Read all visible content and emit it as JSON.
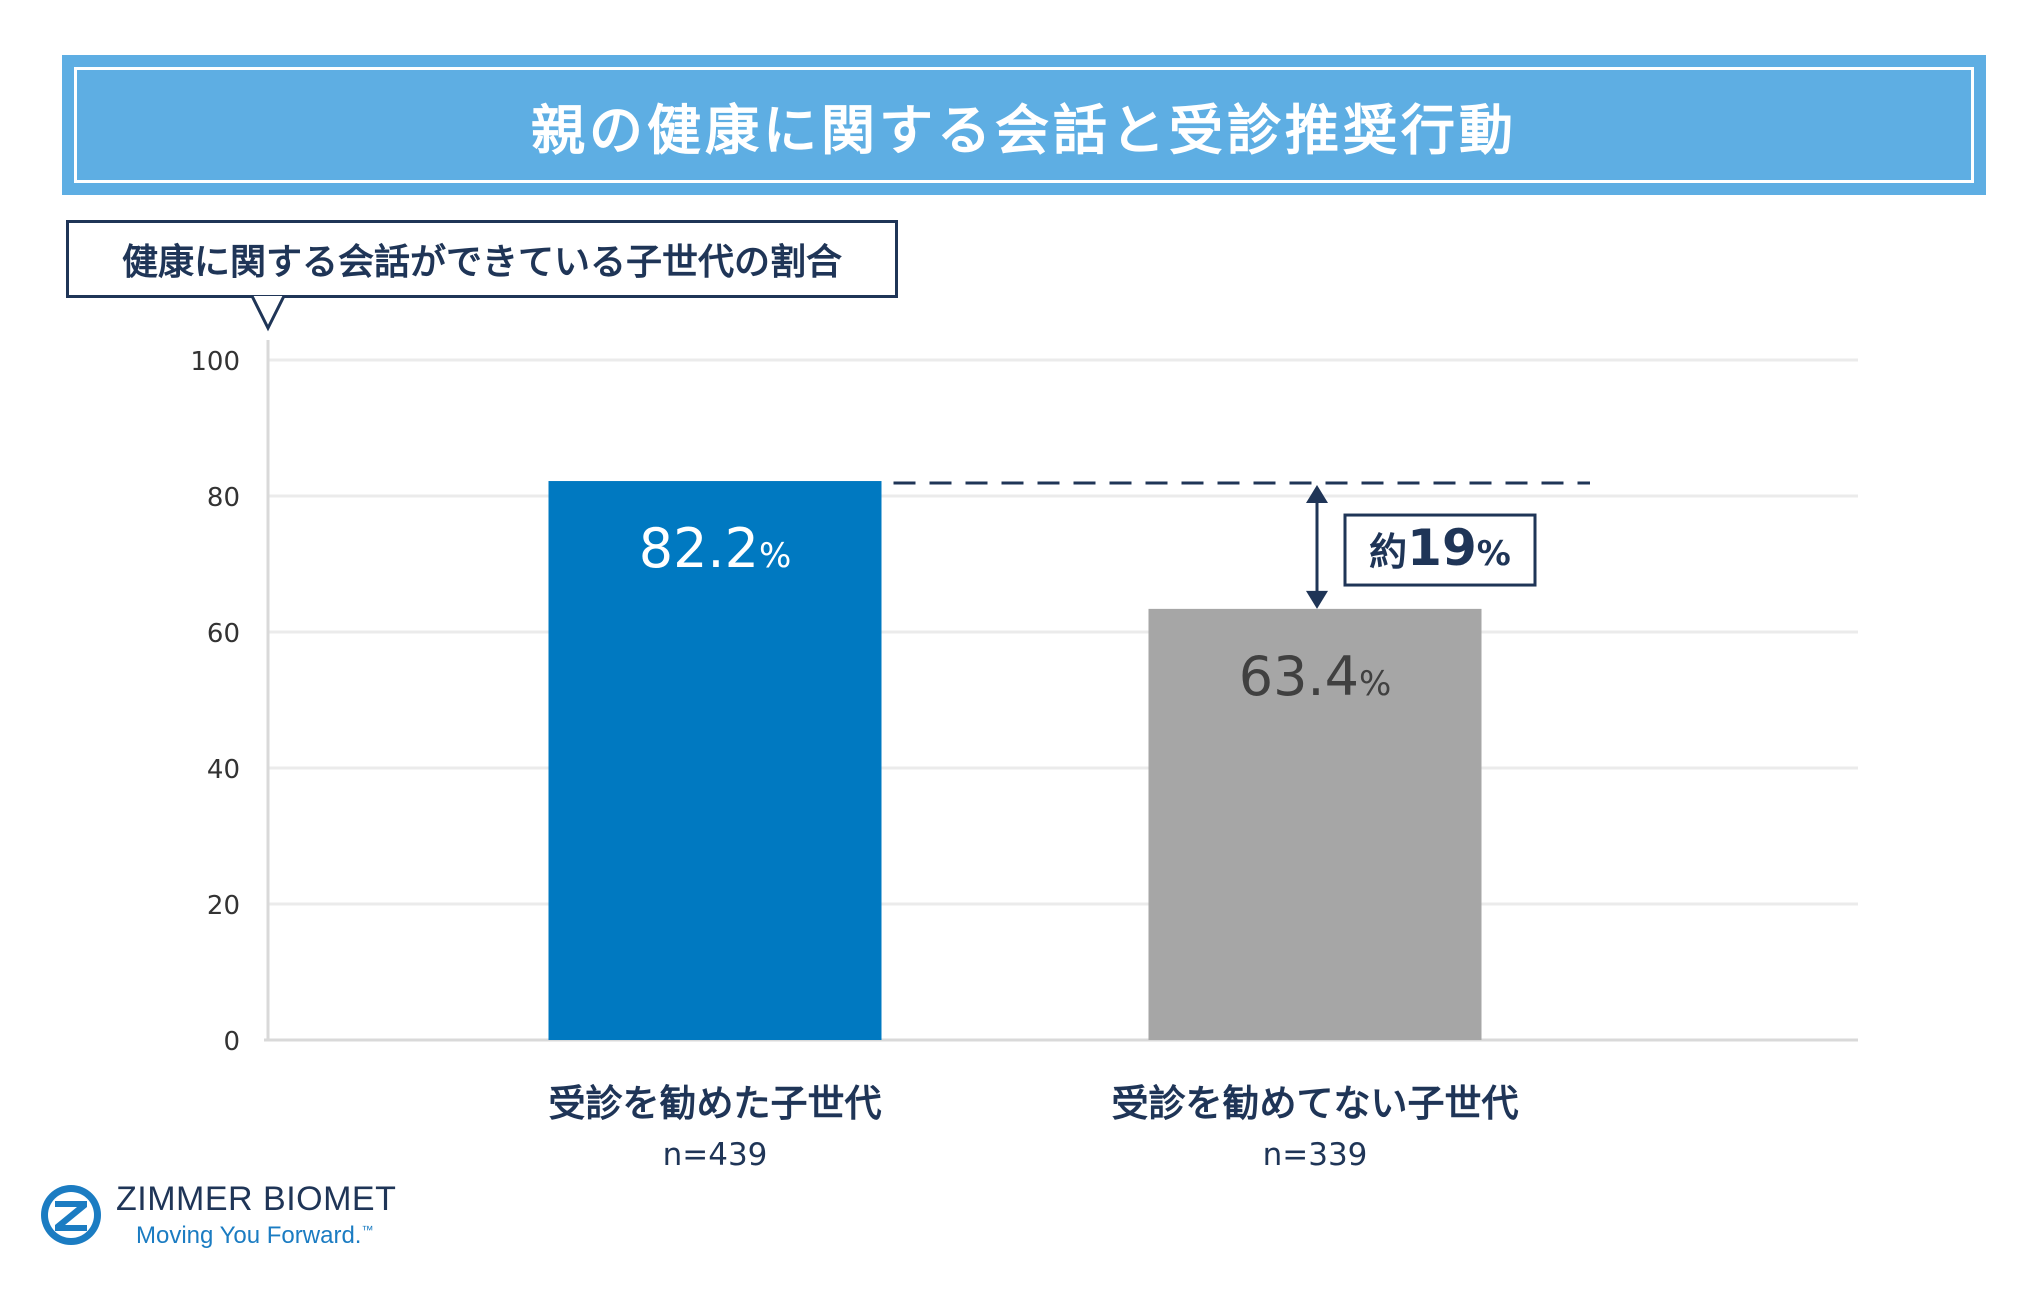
{
  "title": "親の健康に関する会話と受診推奨行動",
  "callout": "健康に関する会話ができている子世代の割合",
  "chart_data": {
    "type": "bar",
    "ylim": [
      0,
      100
    ],
    "yticks": [
      0,
      20,
      40,
      60,
      80,
      100
    ],
    "grid": true,
    "categories": [
      "受診を勧めた子世代",
      "受診を勧めてない子世代"
    ],
    "sample_sizes": [
      "n=439",
      "n=339"
    ],
    "values": [
      82.2,
      63.4
    ],
    "value_labels": [
      "82.2",
      "63.4"
    ],
    "value_unit": "%",
    "colors": [
      "#0079c1",
      "#a6a6a6"
    ],
    "value_label_colors": [
      "#ffffff",
      "#404040"
    ],
    "difference_annotation": {
      "prefix": "約",
      "value": "19",
      "unit": "%"
    }
  },
  "logo": {
    "name": "ZIMMER BIOMET",
    "tagline": "Moving You Forward.",
    "trademark": "™"
  }
}
